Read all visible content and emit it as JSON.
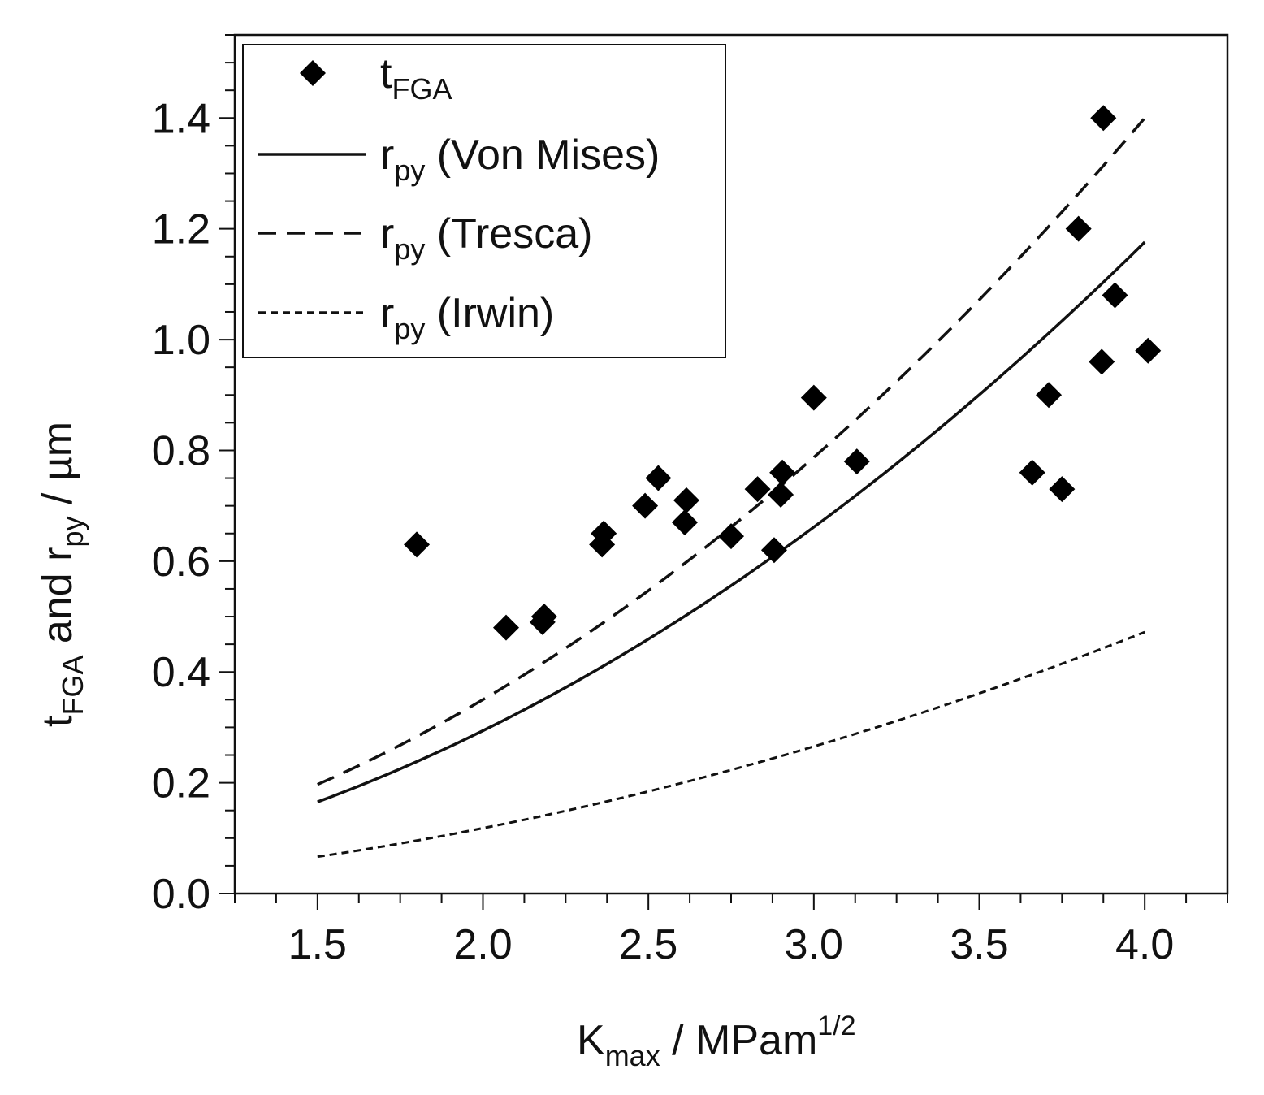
{
  "chart_data": {
    "type": "scatter",
    "title": "",
    "xlabel": {
      "main": "K",
      "sub": "max",
      "rest": " / MPam",
      "sup": "1/2"
    },
    "ylabel": {
      "t": "t",
      "t_sub": "FGA",
      "mid": " and r",
      "r_sub": "py",
      "unit": "  / µm"
    },
    "xlim": [
      1.25,
      4.25
    ],
    "ylim": [
      0.0,
      1.55
    ],
    "xticks": [
      "1.5",
      "2.0",
      "2.5",
      "3.0",
      "3.5",
      "4.0"
    ],
    "xtick_values": [
      1.5,
      2.0,
      2.5,
      3.0,
      3.5,
      4.0
    ],
    "yticks": [
      "0.0",
      "0.2",
      "0.4",
      "0.6",
      "0.8",
      "1.0",
      "1.2",
      "1.4"
    ],
    "ytick_values": [
      0.0,
      0.2,
      0.4,
      0.6,
      0.8,
      1.0,
      1.2,
      1.4
    ],
    "grid": false,
    "legend_position": "top-left",
    "legend": [
      {
        "main": "t",
        "sub": "FGA",
        "rest": "",
        "style": "marker"
      },
      {
        "main": "r",
        "sub": "py",
        "rest": " (Von Mises)",
        "style": "solid"
      },
      {
        "main": "r",
        "sub": "py",
        "rest": " (Tresca)",
        "style": "dashed"
      },
      {
        "main": "r",
        "sub": "py",
        "rest": " (Irwin)",
        "style": "dotted"
      }
    ],
    "points": {
      "name": "tFGA",
      "x": [
        1.8,
        2.07,
        2.18,
        2.185,
        2.36,
        2.365,
        2.49,
        2.53,
        2.61,
        2.615,
        2.75,
        2.83,
        2.88,
        2.9,
        2.905,
        3.0,
        3.13,
        3.66,
        3.71,
        3.75,
        3.8,
        3.87,
        3.875,
        3.91,
        4.01
      ],
      "y": [
        0.63,
        0.48,
        0.49,
        0.5,
        0.63,
        0.65,
        0.7,
        0.75,
        0.67,
        0.71,
        0.645,
        0.73,
        0.62,
        0.72,
        0.76,
        0.895,
        0.78,
        0.76,
        0.9,
        0.73,
        1.2,
        0.96,
        1.4,
        1.08,
        0.98
      ]
    },
    "series": [
      {
        "name": "rpy (Von Mises)",
        "style": "solid",
        "coeff": 0.0735,
        "x_range": [
          1.5,
          4.0
        ]
      },
      {
        "name": "rpy (Tresca)",
        "style": "dashed",
        "coeff": 0.0875,
        "x_range": [
          1.5,
          4.0
        ]
      },
      {
        "name": "rpy (Irwin)",
        "style": "dotted",
        "coeff": 0.0295,
        "x_range": [
          1.5,
          4.0
        ]
      }
    ],
    "curve_model": "y = coeff * x^2"
  }
}
